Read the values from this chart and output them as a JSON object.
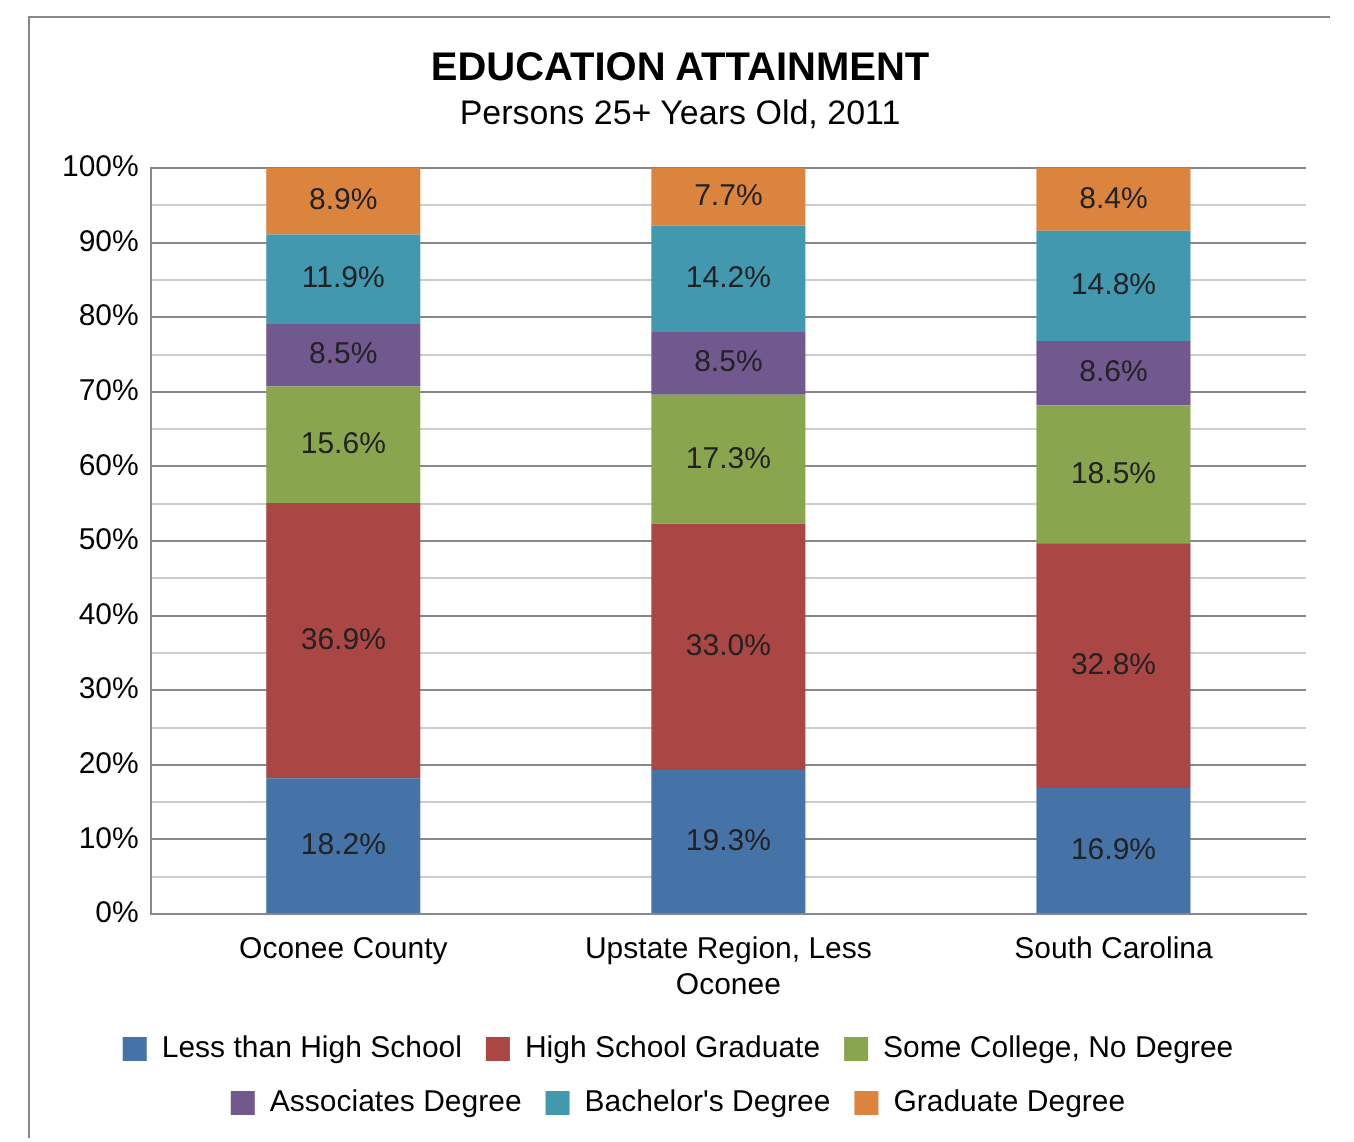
{
  "chart_data": {
    "type": "bar",
    "title": "EDUCATION ATTAINMENT",
    "subtitle": "Persons 25+ Years Old, 2011",
    "categories": [
      "Oconee County",
      "Upstate Region, Less Oconee",
      "South Carolina"
    ],
    "stacked": true,
    "data_labels": true,
    "legend": "bottom",
    "grid": "y",
    "ylim": [
      0,
      100
    ],
    "yticks": [
      {
        "value": 0,
        "label": "0%"
      },
      {
        "value": 5,
        "label": null
      },
      {
        "value": 10,
        "label": "10%"
      },
      {
        "value": 15,
        "label": null
      },
      {
        "value": 20,
        "label": "20%"
      },
      {
        "value": 25,
        "label": null
      },
      {
        "value": 30,
        "label": "30%"
      },
      {
        "value": 35,
        "label": null
      },
      {
        "value": 40,
        "label": "40%"
      },
      {
        "value": 45,
        "label": null
      },
      {
        "value": 50,
        "label": "50%"
      },
      {
        "value": 55,
        "label": null
      },
      {
        "value": 60,
        "label": "60%"
      },
      {
        "value": 65,
        "label": null
      },
      {
        "value": 70,
        "label": "70%"
      },
      {
        "value": 75,
        "label": null
      },
      {
        "value": 80,
        "label": "80%"
      },
      {
        "value": 85,
        "label": null
      },
      {
        "value": 90,
        "label": "90%"
      },
      {
        "value": 95,
        "label": null
      },
      {
        "value": 100,
        "label": "100%"
      }
    ],
    "series": [
      {
        "name": "Less than High School",
        "color": "#4572a7",
        "values": [
          18.2,
          19.3,
          16.9
        ],
        "value_labels": [
          "18.2%",
          "19.3%",
          "16.9%"
        ]
      },
      {
        "name": "High School Graduate",
        "color": "#aa4643",
        "values": [
          36.9,
          33.0,
          32.8
        ],
        "value_labels": [
          "36.9%",
          "33.0%",
          "32.8%"
        ]
      },
      {
        "name": "Some College, No Degree",
        "color": "#89a54e",
        "values": [
          15.6,
          17.3,
          18.5
        ],
        "value_labels": [
          "15.6%",
          "17.3%",
          "18.5%"
        ]
      },
      {
        "name": "Associates Degree",
        "color": "#71588f",
        "values": [
          8.5,
          8.5,
          8.6
        ],
        "value_labels": [
          "8.5%",
          "8.5%",
          "8.6%"
        ]
      },
      {
        "name": "Bachelor's Degree",
        "color": "#4198af",
        "values": [
          11.9,
          14.2,
          14.8
        ],
        "value_labels": [
          "11.9%",
          "14.2%",
          "14.8%"
        ]
      },
      {
        "name": "Graduate Degree",
        "color": "#db843d",
        "values": [
          8.9,
          7.7,
          8.4
        ],
        "value_labels": [
          "8.9%",
          "7.7%",
          "8.4%"
        ]
      }
    ]
  }
}
